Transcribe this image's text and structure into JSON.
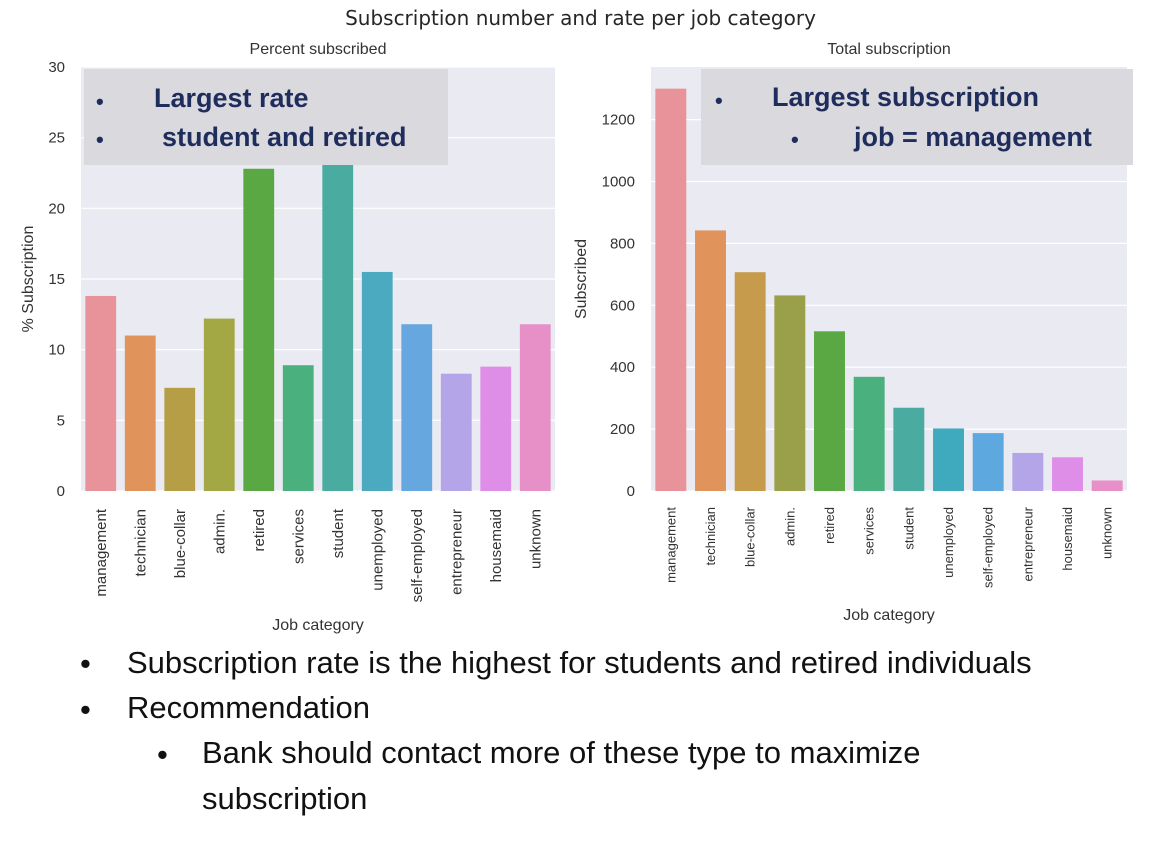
{
  "title": "Subscription number and rate per job category",
  "chart_data": [
    {
      "type": "bar",
      "title": "Percent subscribed",
      "xlabel": "Job category",
      "ylabel": "% Subscription",
      "ylim": [
        0,
        30
      ],
      "yticks": [
        0,
        5,
        10,
        15,
        20,
        25,
        30
      ],
      "grid": true,
      "categories": [
        "management",
        "technician",
        "blue-collar",
        "admin.",
        "retired",
        "services",
        "student",
        "unemployed",
        "self-employed",
        "entrepreneur",
        "housemaid",
        "unknown"
      ],
      "values": [
        13.8,
        11.0,
        7.3,
        12.2,
        22.8,
        8.9,
        28.7,
        15.5,
        11.8,
        8.3,
        8.8,
        11.8
      ],
      "colors": [
        "#e8929a",
        "#e1935c",
        "#b69e47",
        "#a3a845",
        "#5aa844",
        "#4ab07e",
        "#4aaca0",
        "#4caac0",
        "#66a7df",
        "#b4a4e8",
        "#df8ee8",
        "#e790c8"
      ]
    },
    {
      "type": "bar",
      "title": "Total subscription",
      "xlabel": "Job category",
      "ylabel": "Subscribed",
      "ylim": [
        0,
        1370
      ],
      "yticks": [
        0,
        200,
        400,
        600,
        800,
        1000,
        1200
      ],
      "grid": true,
      "categories": [
        "management",
        "technician",
        "blue-collar",
        "admin.",
        "retired",
        "services",
        "student",
        "unemployed",
        "self-employed",
        "entrepreneur",
        "housemaid",
        "unknown"
      ],
      "values": [
        1300,
        842,
        707,
        632,
        516,
        369,
        269,
        202,
        187,
        123,
        109,
        34
      ],
      "colors": [
        "#e8929a",
        "#e1935c",
        "#c69c4c",
        "#9a9f49",
        "#5aa844",
        "#4ab07e",
        "#4aaca0",
        "#3faabd",
        "#5ea8e0",
        "#b4a4e8",
        "#df8ee8",
        "#e790c8"
      ]
    }
  ],
  "callouts": {
    "left": {
      "line1": "Largest rate",
      "line2": "student and retired"
    },
    "right": {
      "line1": "Largest subscription",
      "line2": "job = management"
    },
    "bullet_glyph": "•"
  },
  "notes": {
    "line1": "Subscription rate is the highest for students and retired individuals",
    "line2": "Recommendation",
    "line3": "Bank should contact more of these type to maximize",
    "line4": "subscription",
    "bullet_glyph": "•"
  },
  "colors": {
    "plot_background": "#eaeaf2",
    "grid": "#ffffff",
    "callout_text": "#1f2d5c",
    "callout_bg": "#d9d9de"
  }
}
